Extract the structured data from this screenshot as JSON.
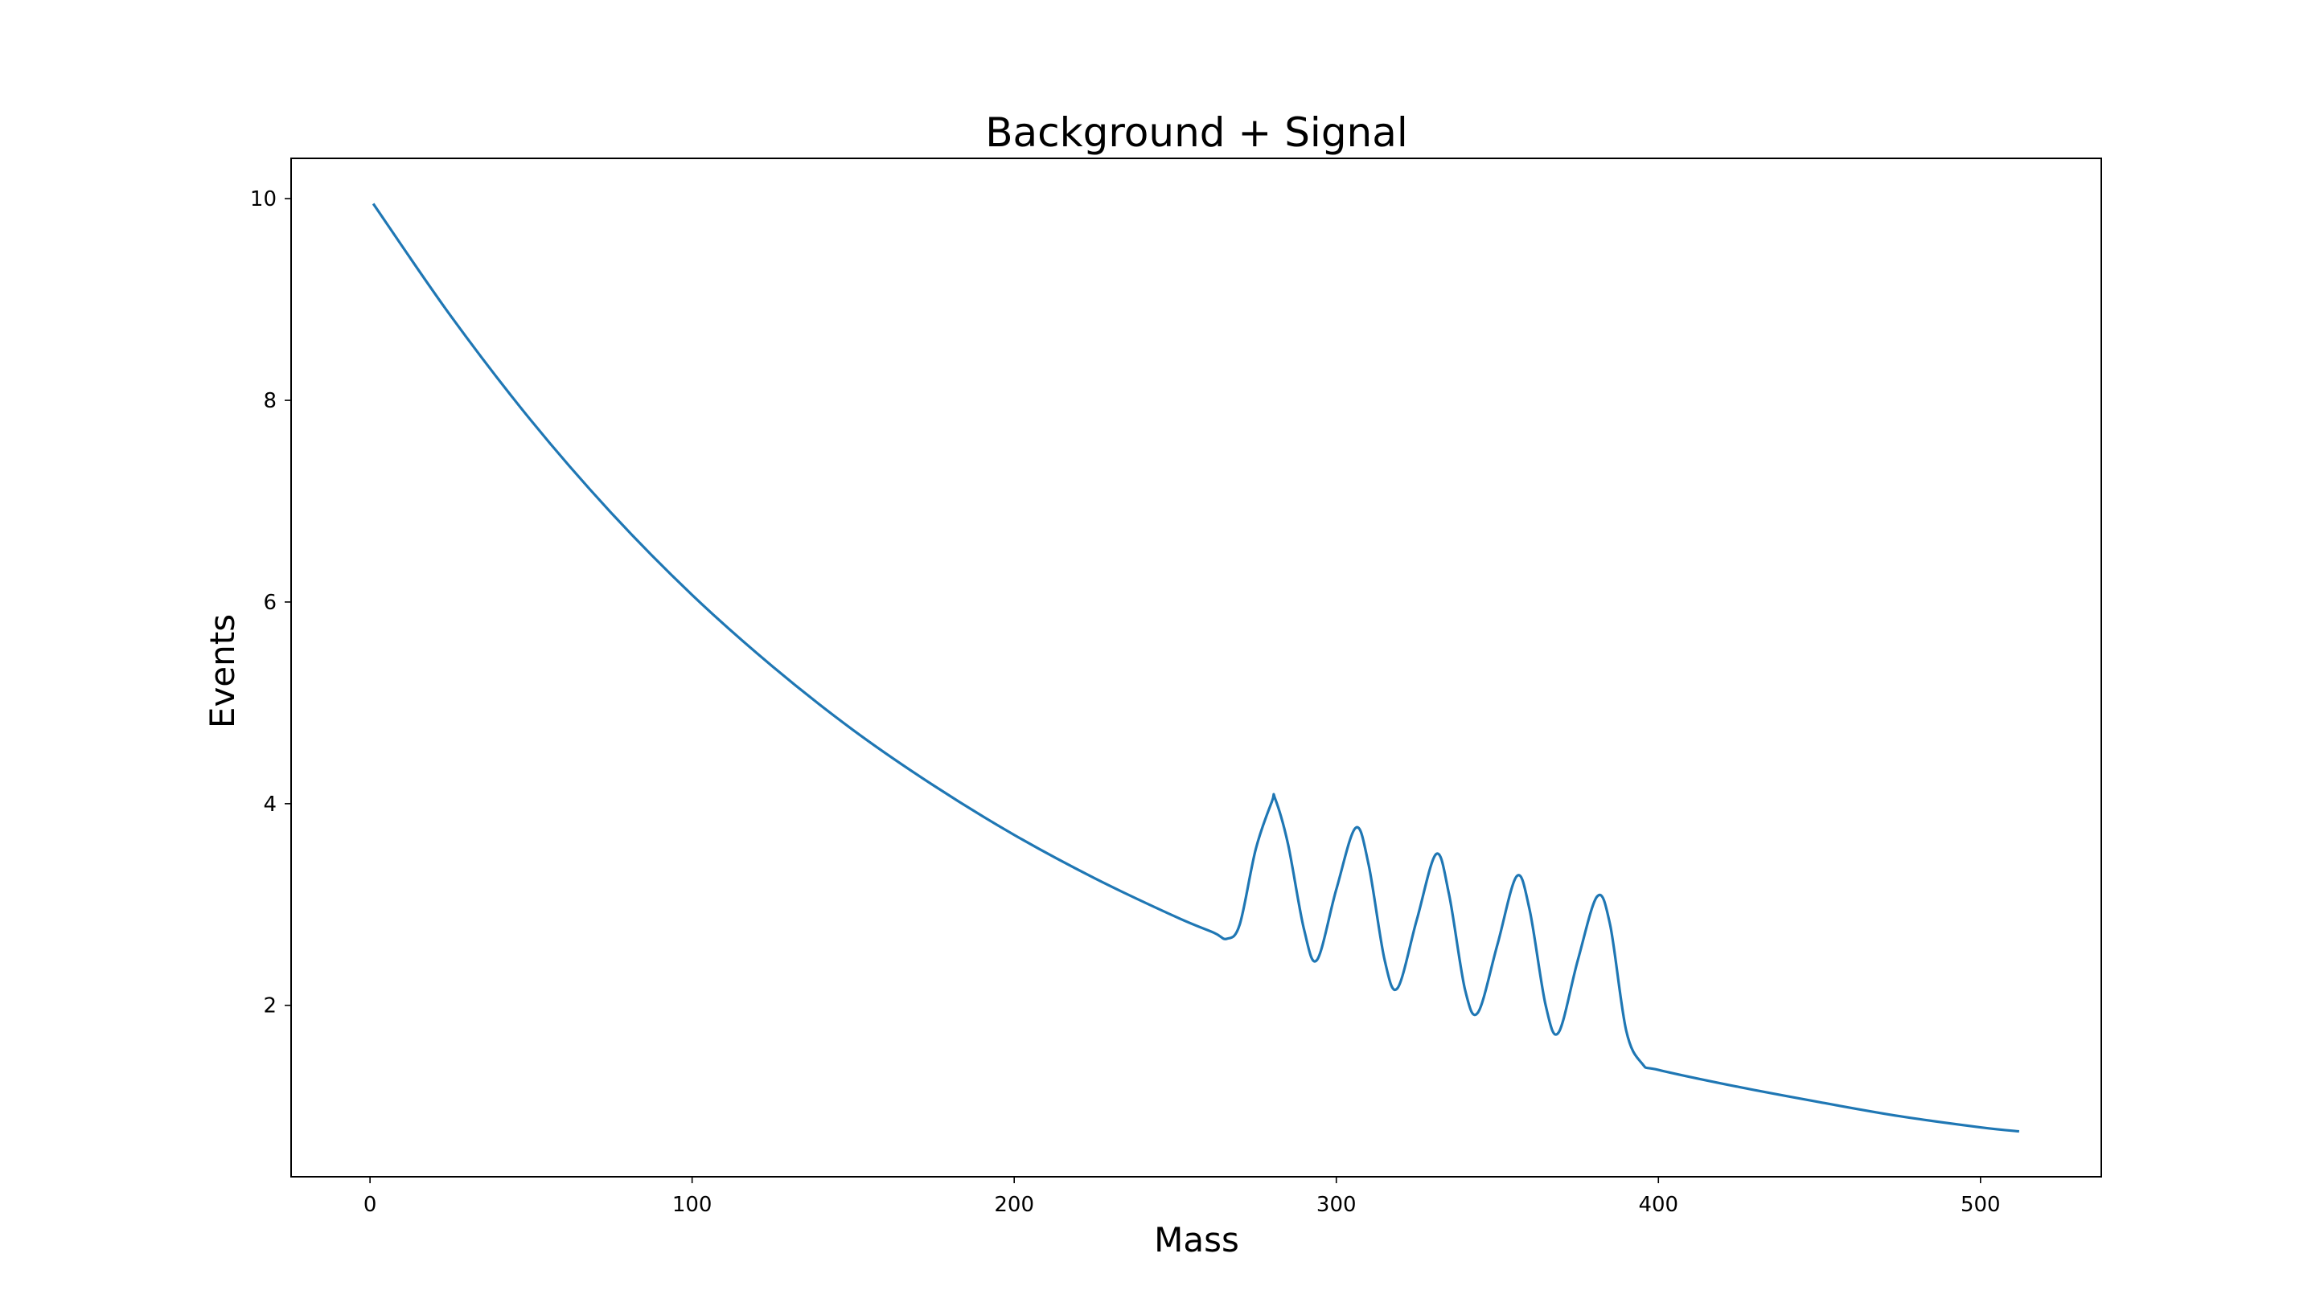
{
  "chart_data": {
    "type": "line",
    "title": "Background + Signal",
    "xlabel": "Mass",
    "ylabel": "Events",
    "xlim": [
      -24.5,
      537.5
    ],
    "ylim": [
      0.3,
      10.4
    ],
    "xticks": [
      0,
      100,
      200,
      300,
      400,
      500
    ],
    "yticks": [
      2,
      4,
      6,
      8,
      10
    ],
    "grid": false,
    "legend": "none",
    "line_color": "#1f77b4",
    "series": [
      {
        "x": [
          1,
          25,
          50,
          75,
          100,
          125,
          150,
          175,
          200,
          225,
          250,
          262,
          266,
          270,
          275,
          280,
          281,
          285,
          290,
          294,
          300,
          306,
          310,
          315,
          319,
          325,
          331,
          335,
          340,
          344,
          350,
          356,
          360,
          365,
          369,
          375,
          381,
          385,
          390,
          395,
          400,
          425,
          450,
          475,
          500,
          512
        ],
        "y": [
          9.95,
          8.84,
          7.8,
          6.88,
          6.07,
          5.36,
          4.73,
          4.18,
          3.69,
          3.26,
          2.88,
          2.72,
          2.66,
          2.8,
          3.55,
          4.02,
          4.05,
          3.6,
          2.75,
          2.45,
          3.15,
          3.76,
          3.4,
          2.45,
          2.17,
          2.85,
          3.5,
          3.1,
          2.15,
          1.93,
          2.6,
          3.28,
          2.95,
          2.0,
          1.73,
          2.45,
          3.08,
          2.8,
          1.75,
          1.42,
          1.36,
          1.19,
          1.04,
          0.9,
          0.79,
          0.75
        ]
      }
    ]
  }
}
